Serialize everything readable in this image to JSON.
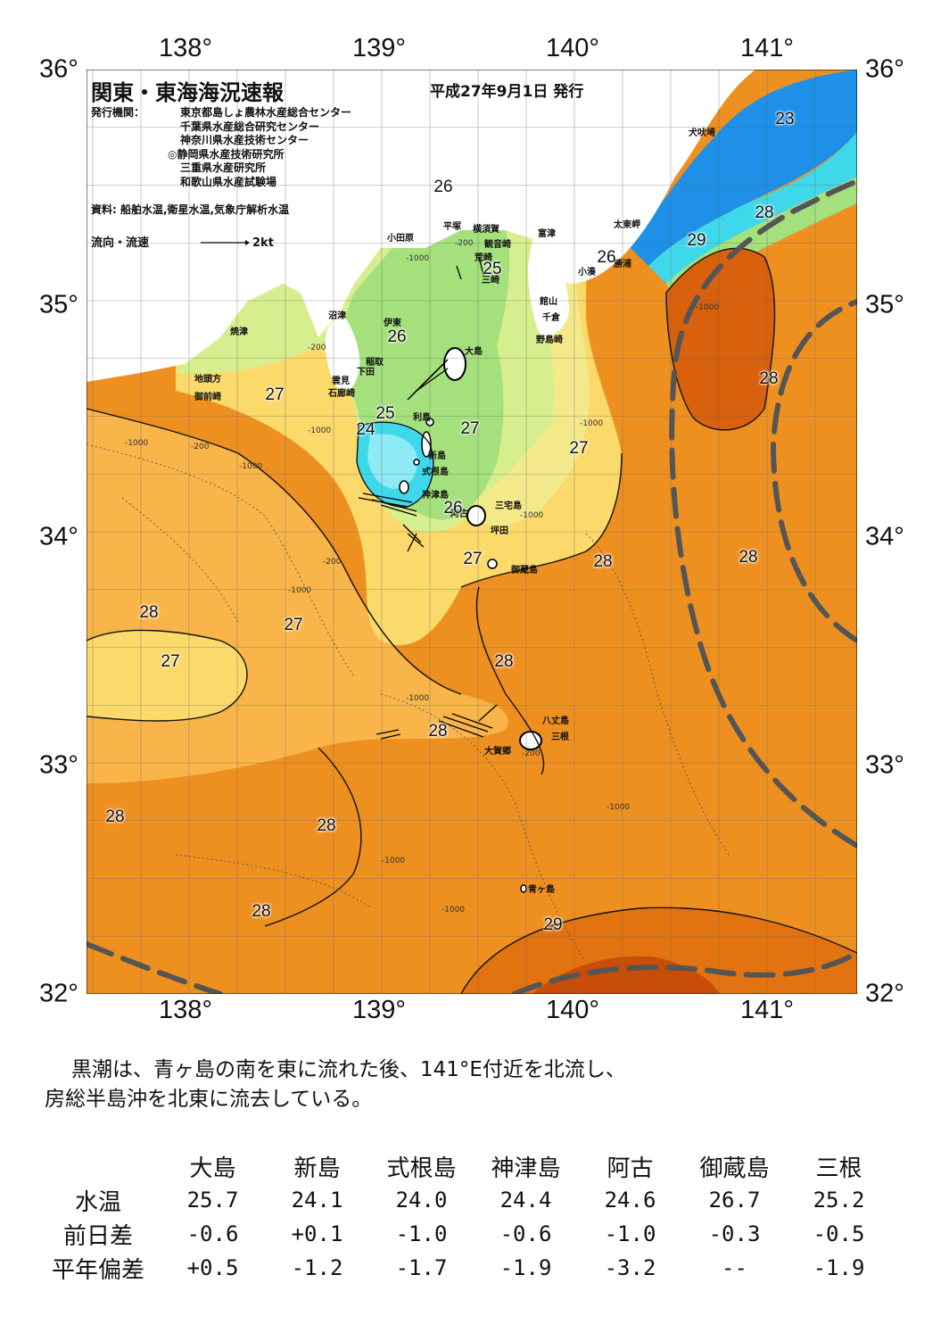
{
  "header": {
    "title": "関東・東海海況速報",
    "issue_date": "平成27年9月1日 発行",
    "issuers_label": "発行機関：",
    "issuers": [
      "東京都島しょ農林水産総合センター",
      "千葉県水産総合研究センター",
      "神奈川県水産技術センター",
      "◎静岡県水産技術研究所",
      "三重県水産研究所",
      "和歌山県水産試験場"
    ],
    "source": "資料: 船舶水温,衛星水温,気象庁解析水温",
    "legend_label": "流向・流速",
    "legend_scale": "2kt"
  },
  "axes": {
    "lon_labels": [
      "138°",
      "139°",
      "140°",
      "141°"
    ],
    "lat_labels": [
      "36°",
      "35°",
      "34°",
      "33°",
      "32°"
    ]
  },
  "places": [
    "犬吠埼",
    "太東岬",
    "勝浦",
    "小湊",
    "富津",
    "館山",
    "千倉",
    "野島崎",
    "観音崎",
    "横須賀",
    "荒崎",
    "三崎",
    "平塚",
    "小田原",
    "沼津",
    "焼津",
    "伊東",
    "稲取",
    "下田",
    "雲見",
    "石廊崎",
    "地頭方",
    "御前崎",
    "大島",
    "利島",
    "新島",
    "式根島",
    "神津島",
    "三宅島",
    "阿古",
    "坪田",
    "御蔵島",
    "八丈島",
    "三根",
    "大賀郷",
    "青ヶ島"
  ],
  "temperature_labels": [
    "23",
    "26",
    "25",
    "26",
    "29",
    "28",
    "28",
    "26",
    "27",
    "25",
    "24",
    "27",
    "27",
    "26",
    "27",
    "28",
    "28",
    "28",
    "27",
    "27",
    "28",
    "28",
    "28",
    "28",
    "28",
    "29"
  ],
  "depth_labels": [
    "-200",
    "-1000",
    "-200",
    "-1000",
    "-200",
    "-1000",
    "-1000",
    "-200",
    "-1000",
    "-1000",
    "-1000",
    "-200",
    "-1000",
    "-1000",
    "-1000",
    "-1000",
    "-1000"
  ],
  "summary": [
    "黒潮は、青ヶ島の南を東に流れた後、141°E付近を北流し、",
    "房総半島沖を北東に流去している。"
  ],
  "observation_table": {
    "stations": [
      "大島",
      "新島",
      "式根島",
      "神津島",
      "阿古",
      "御蔵島",
      "三根"
    ],
    "rows": [
      {
        "label": "水温",
        "values": [
          "25.7",
          "24.1",
          "24.0",
          "24.4",
          "24.6",
          "26.7",
          "25.2"
        ]
      },
      {
        "label": "前日差",
        "values": [
          "-0.6",
          "+0.1",
          "-1.0",
          "-0.6",
          "-1.0",
          "-0.3",
          "-0.5"
        ]
      },
      {
        "label": "平年偏差",
        "values": [
          "+0.5",
          "-1.2",
          "-1.7",
          "-1.9",
          "-3.2",
          "--",
          "-1.9"
        ]
      }
    ]
  },
  "colors": {
    "warm_29": "#d9600c",
    "warm_28": "#ee9020",
    "warm_27": "#f9b54a",
    "cool_27": "#fbd96a",
    "yellow_26": "#f4e98a",
    "green_26": "#d7ee8e",
    "green_25": "#a4e07c",
    "cyan_24": "#3fd8ea",
    "blue_23": "#1e90e8",
    "land": "#ffffff",
    "kuroshio_axis": "#555555"
  }
}
